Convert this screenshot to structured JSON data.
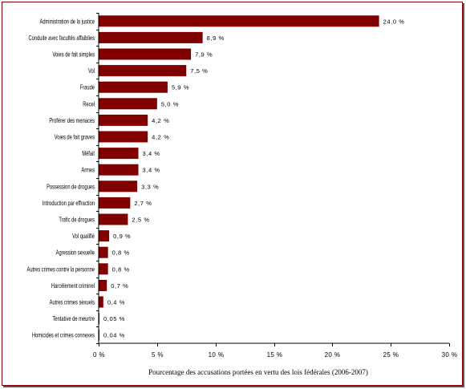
{
  "chart_data": {
    "type": "bar",
    "orientation": "horizontal",
    "categories": [
      "Administration de la justice",
      "Conduite avec facultés affaiblies",
      "Voies de fait simples",
      "Vol",
      "Fraude",
      "Recel",
      "Proférer des menaces",
      "Voies de fait graves",
      "Méfait",
      "Armes",
      "Possession de drogues",
      "Introduction par effraction",
      "Trafic de drogues",
      "Vol qualifié",
      "Agression sexuelle",
      "Autres crimes contre la personne",
      "Harcèlement criminel",
      "Autres crimes sexuels",
      "Tentative de meurtre",
      "Homicides et crimes connexes"
    ],
    "values": [
      24.0,
      8.9,
      7.9,
      7.5,
      5.9,
      5.0,
      4.2,
      4.2,
      3.4,
      3.4,
      3.3,
      2.7,
      2.5,
      0.9,
      0.8,
      0.8,
      0.7,
      0.4,
      0.05,
      0.04
    ],
    "value_labels": [
      "24,0 %",
      "8,9 %",
      "7,9 %",
      "7,5 %",
      "5,9 %",
      "5,0 %",
      "4,2 %",
      "4,2 %",
      "3,4 %",
      "3,4 %",
      "3,3 %",
      "2,7 %",
      "2,5 %",
      "0,9 %",
      "0,8 %",
      "0,8 %",
      "0,7 %",
      "0,4 %",
      "0,05 %",
      "0,04 %"
    ],
    "xlabel": "Pourcentage des accusations portées en vertu des lois fédérales (2006-2007)",
    "xlim": [
      0,
      30
    ],
    "xticks": [
      0,
      5,
      10,
      15,
      20,
      25,
      30
    ],
    "xtick_labels": [
      "0 %",
      "5 %",
      "10 %",
      "15 %",
      "20 %",
      "25 %",
      "30 %"
    ],
    "bar_color": "#800000",
    "grid": false,
    "legend": "none"
  },
  "frame_color": "#800000"
}
